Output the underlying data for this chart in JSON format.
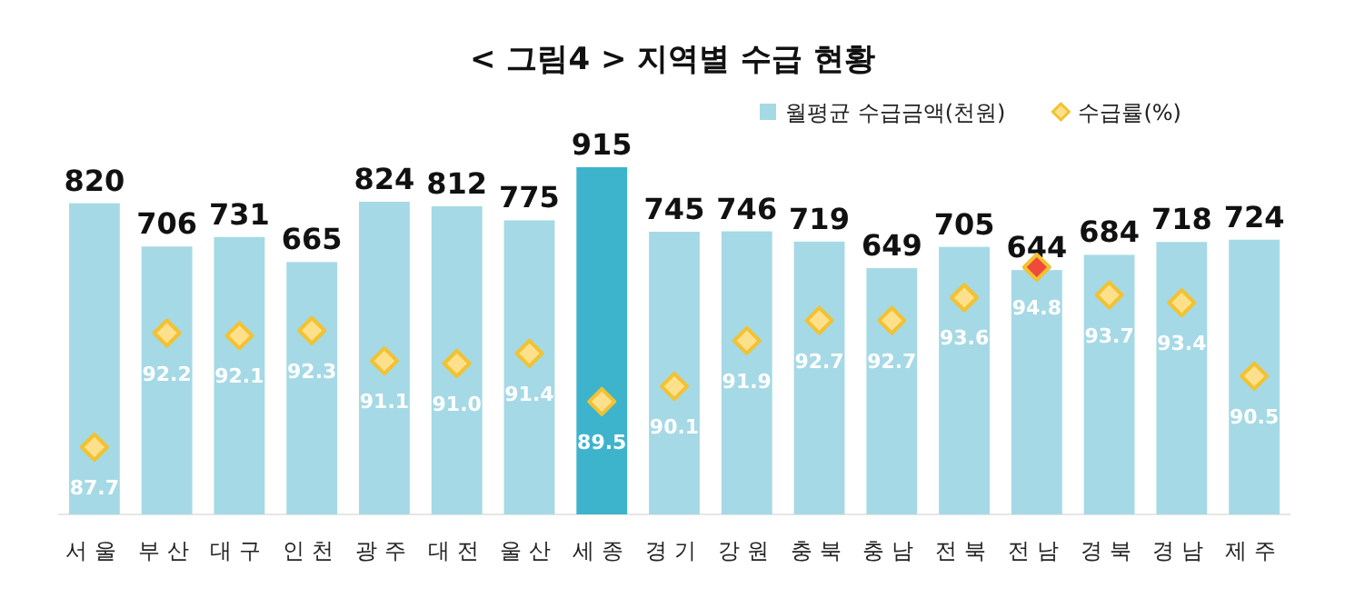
{
  "chart_data": {
    "type": "bar",
    "title": "< 그림4 > 지역별 수급 현황",
    "categories": [
      "서울",
      "부산",
      "대구",
      "인천",
      "광주",
      "대전",
      "울산",
      "세종",
      "경기",
      "강원",
      "충북",
      "충남",
      "전북",
      "전남",
      "경북",
      "경남",
      "제주"
    ],
    "legend": "top right",
    "tick_labels": "x",
    "series": [
      {
        "name": "월평균 수급금액(천원)",
        "type": "bar",
        "color": "#a5d9e5",
        "colors": [
          "#a5d9e5",
          "#a5d9e5",
          "#a5d9e5",
          "#a5d9e5",
          "#a5d9e5",
          "#a5d9e5",
          "#a5d9e5",
          "#3db4cc",
          "#a5d9e5",
          "#a5d9e5",
          "#a5d9e5",
          "#a5d9e5",
          "#a5d9e5",
          "#a5d9e5",
          "#a5d9e5",
          "#a5d9e5",
          "#a5d9e5"
        ],
        "values": [
          820,
          706,
          731,
          665,
          824,
          812,
          775,
          915,
          745,
          746,
          719,
          649,
          705,
          644,
          684,
          718,
          724
        ],
        "value_labels": [
          "820",
          "706",
          "731",
          "665",
          "824",
          "812",
          "775",
          "915",
          "745",
          "746",
          "719",
          "649",
          "705",
          "644",
          "684",
          "718",
          "724"
        ]
      },
      {
        "name": "수급률(%)",
        "type": "scatter",
        "axis": "y2",
        "marker": "diamond",
        "color": "#fde08c",
        "colors": [
          "#fde08c",
          "#fde08c",
          "#fde08c",
          "#fde08c",
          "#fde08c",
          "#fde08c",
          "#fde08c",
          "#fde08c",
          "#fde08c",
          "#fde08c",
          "#fde08c",
          "#fde08c",
          "#fde08c",
          "#f04a3a",
          "#fde08c",
          "#fde08c",
          "#fde08c"
        ],
        "values": [
          87.7,
          92.2,
          92.1,
          92.3,
          91.1,
          91.0,
          91.4,
          89.5,
          90.1,
          91.9,
          92.7,
          92.7,
          93.6,
          94.8,
          93.7,
          93.4,
          90.5
        ],
        "value_labels": [
          "87.7",
          "92.2",
          "92.1",
          "92.3",
          "91.1",
          "91.0",
          "91.4",
          "89.5",
          "90.1",
          "91.9",
          "92.7",
          "92.7",
          "93.6",
          "94.8",
          "93.7",
          "93.4",
          "90.5"
        ]
      }
    ]
  }
}
